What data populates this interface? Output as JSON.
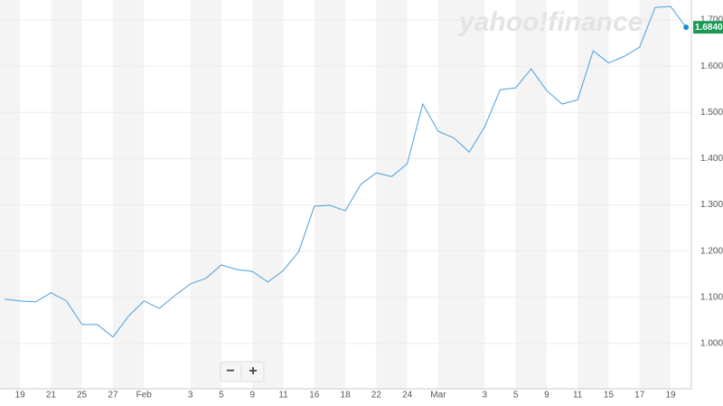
{
  "chart_data": {
    "type": "line",
    "watermark": "yahoo!finance",
    "zoom_controls": [
      "−",
      "+"
    ],
    "categories": [
      null,
      "19",
      null,
      "21",
      null,
      "25",
      null,
      "27",
      null,
      "Feb",
      null,
      null,
      "3",
      null,
      "5",
      null,
      "9",
      null,
      "11",
      null,
      "16",
      null,
      "18",
      null,
      "22",
      null,
      "24",
      null,
      "Mar",
      null,
      null,
      "3",
      null,
      "5",
      null,
      "9",
      null,
      "11",
      null,
      "15",
      null,
      "17",
      null,
      "19",
      null
    ],
    "values": [
      1.096,
      1.092,
      1.09,
      1.11,
      1.092,
      1.041,
      1.041,
      1.014,
      1.059,
      1.092,
      1.076,
      1.104,
      1.129,
      1.141,
      1.17,
      1.16,
      1.156,
      1.133,
      1.158,
      1.199,
      1.297,
      1.299,
      1.287,
      1.344,
      1.369,
      1.361,
      1.389,
      1.518,
      1.459,
      1.445,
      1.414,
      1.469,
      1.549,
      1.553,
      1.594,
      1.547,
      1.518,
      1.527,
      1.633,
      1.607,
      1.621,
      1.641,
      1.727,
      1.729,
      1.684
    ],
    "last_value_label": "1.6840",
    "color": "#4a9fe0",
    "last_badge_color": "#1c9a55",
    "ylim": [
      0.902,
      1.743
    ],
    "yticks": [
      {
        "value": 1.0,
        "label": "1.0000"
      },
      {
        "value": 1.1,
        "label": "1.1000"
      },
      {
        "value": 1.2,
        "label": "1.2000"
      },
      {
        "value": 1.3,
        "label": "1.3000"
      },
      {
        "value": 1.4,
        "label": "1.4000"
      },
      {
        "value": 1.5,
        "label": "1.5000"
      },
      {
        "value": 1.6,
        "label": "1.6000"
      },
      {
        "value": 1.7,
        "label": "1.7000"
      }
    ],
    "grid": true
  }
}
